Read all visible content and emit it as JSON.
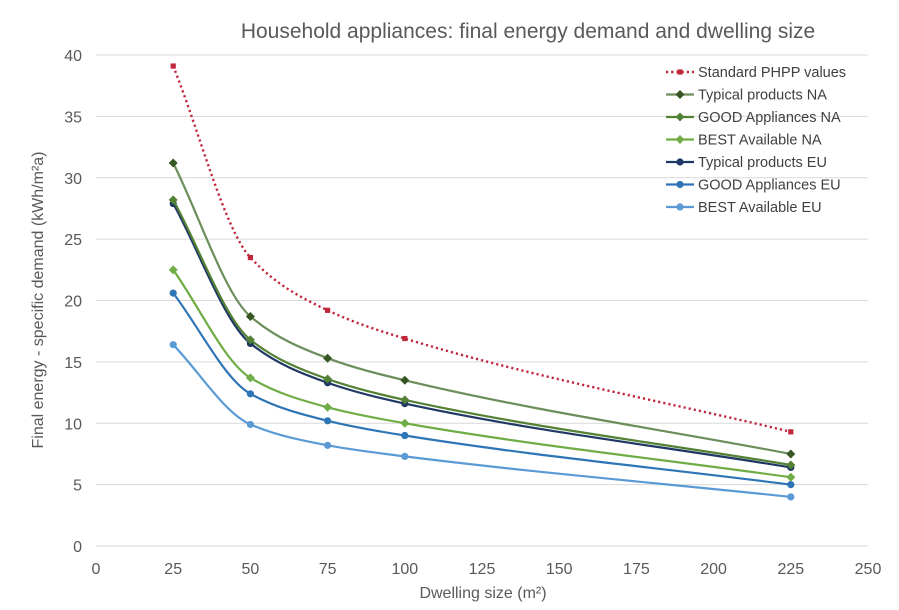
{
  "chart_data": {
    "type": "line",
    "title": "Household appliances: final energy demand and dwelling size",
    "xlabel": "Dwelling size (m²)",
    "ylabel": "Final energy - specific demand (kWh/m²a)",
    "xlim": [
      0,
      250
    ],
    "ylim": [
      0,
      40
    ],
    "xticks": [
      0,
      25,
      50,
      75,
      100,
      125,
      150,
      175,
      200,
      225,
      250
    ],
    "yticks": [
      0,
      5,
      10,
      15,
      20,
      25,
      30,
      35,
      40
    ],
    "grid": "horizontal",
    "legend_position": "top-right",
    "x": [
      25,
      50,
      75,
      100,
      225
    ],
    "series": [
      {
        "name": "Standard PHPP values",
        "values": [
          39.1,
          23.5,
          19.2,
          16.9,
          9.3
        ],
        "color": "#c0273b",
        "dashed": true,
        "marker": "square"
      },
      {
        "name": "Typical products NA",
        "values": [
          31.2,
          18.7,
          15.3,
          13.5,
          7.5
        ],
        "color": "#6b8e5a",
        "markerColor": "#375623",
        "marker": "diamond"
      },
      {
        "name": "GOOD Appliances NA",
        "values": [
          28.2,
          16.8,
          13.6,
          11.9,
          6.6
        ],
        "color": "#548235",
        "markerColor": "#548235",
        "marker": "diamond"
      },
      {
        "name": "BEST Available NA",
        "values": [
          22.5,
          13.7,
          11.3,
          10.0,
          5.6
        ],
        "color": "#70ad47",
        "markerColor": "#70ad47",
        "marker": "diamond"
      },
      {
        "name": "Typical products EU",
        "values": [
          27.9,
          16.5,
          13.3,
          11.6,
          6.4
        ],
        "color": "#1f3864",
        "markerColor": "#1f3864",
        "marker": "circle"
      },
      {
        "name": "GOOD Appliances EU",
        "values": [
          20.6,
          12.4,
          10.2,
          9.0,
          5.0
        ],
        "color": "#2e75b6",
        "markerColor": "#2e75b6",
        "marker": "circle"
      },
      {
        "name": "BEST Available EU",
        "values": [
          16.4,
          9.9,
          8.2,
          7.3,
          4.0
        ],
        "color": "#5b9bd5",
        "markerColor": "#5b9bd5",
        "marker": "circle"
      }
    ]
  }
}
